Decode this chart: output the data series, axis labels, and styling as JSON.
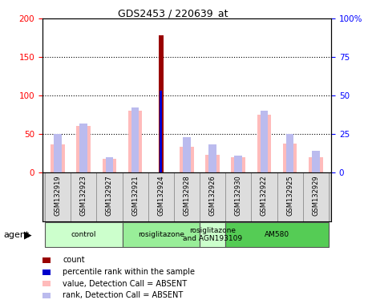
{
  "title": "GDS2453 / 220639_at",
  "samples": [
    "GSM132919",
    "GSM132923",
    "GSM132927",
    "GSM132921",
    "GSM132924",
    "GSM132928",
    "GSM132926",
    "GSM132930",
    "GSM132922",
    "GSM132925",
    "GSM132929"
  ],
  "count_values": [
    0,
    0,
    0,
    0,
    178,
    0,
    0,
    0,
    0,
    0,
    0
  ],
  "percentile_values": [
    0,
    0,
    0,
    0,
    53,
    0,
    0,
    0,
    0,
    0,
    0
  ],
  "value_absent": [
    36,
    60,
    18,
    80,
    0,
    33,
    23,
    20,
    75,
    38,
    20
  ],
  "rank_absent_pct": [
    25,
    32,
    10,
    42,
    0,
    23,
    18,
    11,
    40,
    25,
    14
  ],
  "ylim_left": [
    0,
    200
  ],
  "ylim_right": [
    0,
    100
  ],
  "yticks_left": [
    0,
    50,
    100,
    150,
    200
  ],
  "ytick_labels_right": [
    "0",
    "25",
    "50",
    "75",
    "100%"
  ],
  "groups": [
    {
      "label": "control",
      "start": 0,
      "end": 3,
      "color": "#ccffcc"
    },
    {
      "label": "rosiglitazone",
      "start": 3,
      "end": 6,
      "color": "#99ee99"
    },
    {
      "label": "rosiglitazone\nand AGN193109",
      "start": 6,
      "end": 7,
      "color": "#ccffcc"
    },
    {
      "label": "AM580",
      "start": 7,
      "end": 11,
      "color": "#55cc55"
    }
  ],
  "bar_color_count": "#990000",
  "bar_color_percentile": "#0000cc",
  "bar_color_value_absent": "#ffbbbb",
  "bar_color_rank_absent": "#bbbbee",
  "legend_items": [
    {
      "color": "#990000",
      "label": "count"
    },
    {
      "color": "#0000cc",
      "label": "percentile rank within the sample"
    },
    {
      "color": "#ffbbbb",
      "label": "value, Detection Call = ABSENT"
    },
    {
      "color": "#bbbbee",
      "label": "rank, Detection Call = ABSENT"
    }
  ]
}
